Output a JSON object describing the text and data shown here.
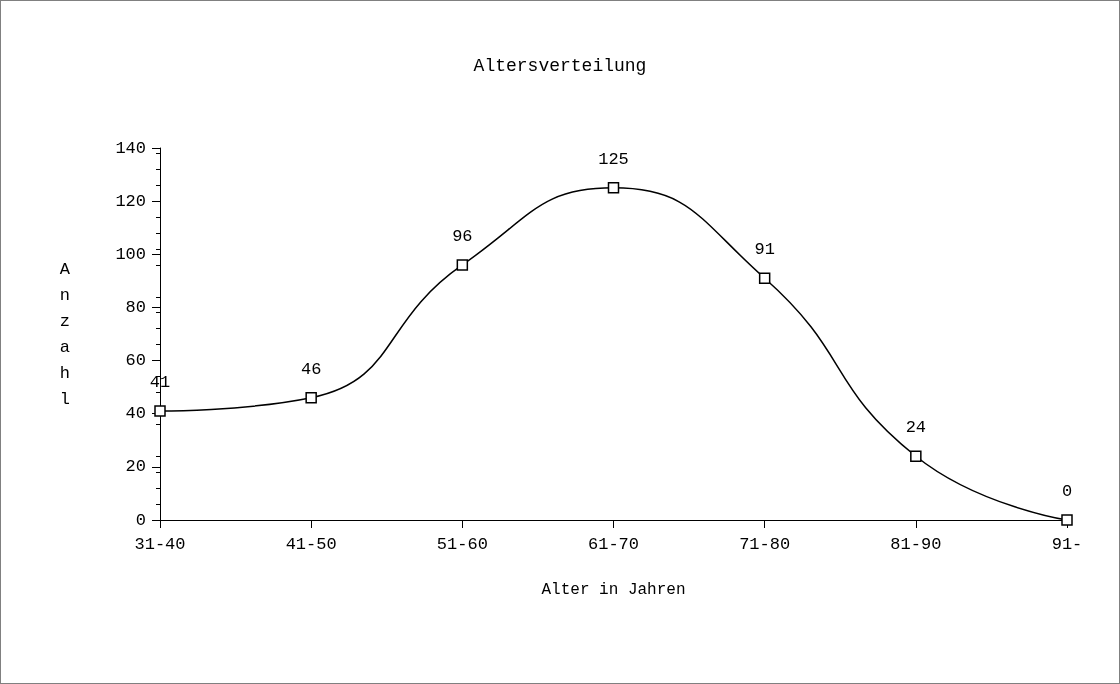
{
  "chart_data": {
    "type": "line",
    "title": "Altersverteilung",
    "xlabel": "Alter in Jahren",
    "ylabel": "Anzahl",
    "categories": [
      "31-40",
      "41-50",
      "51-60",
      "61-70",
      "71-80",
      "81-90",
      "91-"
    ],
    "series": [
      {
        "color": "#000000",
        "values": [
          41,
          46,
          96,
          125,
          91,
          24,
          0
        ]
      }
    ],
    "ylim": [
      0,
      140
    ],
    "yticks": [
      0,
      20,
      40,
      60,
      80,
      100,
      120,
      140
    ],
    "data_labels": true,
    "marker": "square",
    "line_style": "solid",
    "grid": false
  }
}
